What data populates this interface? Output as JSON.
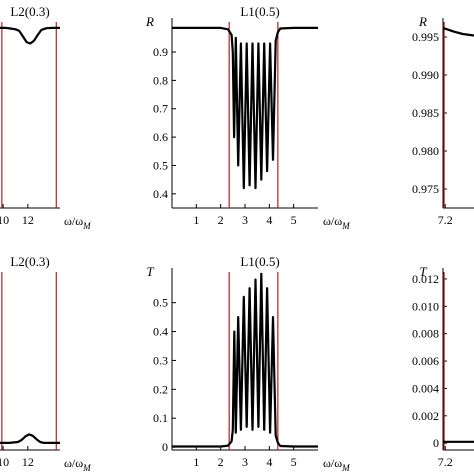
{
  "chart_data": [
    {
      "id": "top-left",
      "type": "line",
      "title": "L2(0.3)",
      "xlabel": "ω/ω_M",
      "ylabel": "",
      "xlim": [
        9.75,
        14.6
      ],
      "ylim": [
        0.35,
        1.02
      ],
      "xticks": [
        {
          "v": 10,
          "label": "10"
        },
        {
          "v": 12,
          "label": "12"
        }
      ],
      "yticks": [],
      "vlines": [
        9.9,
        14.3
      ],
      "series": [
        {
          "x": [
            9.75,
            10.2,
            10.6,
            11.0,
            11.3,
            11.6,
            11.9,
            12.2,
            12.5,
            12.8,
            13.1,
            13.5,
            14.0,
            14.6
          ],
          "y": [
            0.985,
            0.985,
            0.983,
            0.98,
            0.975,
            0.955,
            0.935,
            0.93,
            0.94,
            0.96,
            0.978,
            0.984,
            0.985,
            0.985
          ]
        }
      ]
    },
    {
      "id": "top-middle",
      "type": "line",
      "title": "L1(0.5)",
      "xlabel": "ω/ω_M",
      "ylabel": "R",
      "xlim": [
        0,
        6
      ],
      "ylim": [
        0.35,
        1.02
      ],
      "xticks": [
        {
          "v": 1,
          "label": "1"
        },
        {
          "v": 2,
          "label": "2"
        },
        {
          "v": 3,
          "label": "3"
        },
        {
          "v": 4,
          "label": "4"
        },
        {
          "v": 5,
          "label": "5"
        }
      ],
      "yticks": [
        {
          "v": 0.4,
          "label": "0.4"
        },
        {
          "v": 0.5,
          "label": "0.5"
        },
        {
          "v": 0.6,
          "label": "0.6"
        },
        {
          "v": 0.7,
          "label": "0.7"
        },
        {
          "v": 0.8,
          "label": "0.8"
        },
        {
          "v": 0.9,
          "label": "0.9"
        }
      ],
      "vlines": [
        2.35,
        4.35
      ],
      "series": [
        {
          "x": [
            0,
            1,
            2,
            2.3,
            2.45,
            2.5,
            2.55,
            2.62,
            2.72,
            2.83,
            2.95,
            3.07,
            3.19,
            3.31,
            3.43,
            3.55,
            3.67,
            3.79,
            3.91,
            4.03,
            4.15,
            4.26,
            4.35,
            4.45,
            5,
            6
          ],
          "y": [
            0.985,
            0.985,
            0.985,
            0.98,
            0.96,
            0.9,
            0.6,
            0.95,
            0.5,
            0.93,
            0.42,
            0.93,
            0.43,
            0.93,
            0.42,
            0.93,
            0.45,
            0.93,
            0.48,
            0.93,
            0.52,
            0.94,
            0.97,
            0.983,
            0.985,
            0.985
          ]
        }
      ]
    },
    {
      "id": "top-right",
      "type": "line",
      "title": "",
      "xlabel": "",
      "ylabel": "R",
      "xlim": [
        7.1,
        8.5
      ],
      "ylim": [
        0.9725,
        0.9975
      ],
      "xticks": [
        {
          "v": 7.2,
          "label": "7.2"
        }
      ],
      "yticks": [
        {
          "v": 0.975,
          "label": "0.975"
        },
        {
          "v": 0.98,
          "label": "0.980"
        },
        {
          "v": 0.985,
          "label": "0.985"
        },
        {
          "v": 0.99,
          "label": "0.990"
        },
        {
          "v": 0.995,
          "label": "0.995"
        }
      ],
      "vlines": [
        7.15
      ],
      "series": [
        {
          "x": [
            7.1,
            7.3,
            7.6,
            8.0,
            8.5
          ],
          "y": [
            0.9962,
            0.996,
            0.9957,
            0.9954,
            0.9952
          ]
        }
      ]
    },
    {
      "id": "bottom-left",
      "type": "line",
      "title": "L2(0.3)",
      "xlabel": "ω/ω_M",
      "ylabel": "",
      "xlim": [
        9.75,
        14.6
      ],
      "ylim": [
        -0.02,
        0.62
      ],
      "xticks": [
        {
          "v": 10,
          "label": "10"
        },
        {
          "v": 12,
          "label": "12"
        }
      ],
      "yticks": [],
      "vlines": [
        9.9,
        14.3
      ],
      "series": [
        {
          "x": [
            9.75,
            10.5,
            11.2,
            11.5,
            11.8,
            12.1,
            12.4,
            12.7,
            13.0,
            13.3,
            14.0,
            14.6
          ],
          "y": [
            0.005,
            0.005,
            0.008,
            0.015,
            0.028,
            0.035,
            0.03,
            0.018,
            0.008,
            0.005,
            0.005,
            0.005
          ]
        }
      ]
    },
    {
      "id": "bottom-middle",
      "type": "line",
      "title": "L1(0.5)",
      "xlabel": "ω/ω_M",
      "ylabel": "T",
      "xlim": [
        0,
        6
      ],
      "ylim": [
        -0.01,
        0.62
      ],
      "xticks": [
        {
          "v": 1,
          "label": "1"
        },
        {
          "v": 2,
          "label": "2"
        },
        {
          "v": 3,
          "label": "3"
        },
        {
          "v": 4,
          "label": "4"
        },
        {
          "v": 5,
          "label": "5"
        }
      ],
      "yticks": [
        {
          "v": 0,
          "label": "0"
        },
        {
          "v": 0.1,
          "label": "0.1"
        },
        {
          "v": 0.2,
          "label": "0.2"
        },
        {
          "v": 0.3,
          "label": "0.3"
        },
        {
          "v": 0.4,
          "label": "0.4"
        },
        {
          "v": 0.5,
          "label": "0.5"
        }
      ],
      "vlines": [
        2.35,
        4.35
      ],
      "series": [
        {
          "x": [
            0,
            1,
            2,
            2.3,
            2.45,
            2.5,
            2.56,
            2.62,
            2.72,
            2.83,
            2.95,
            3.07,
            3.19,
            3.31,
            3.43,
            3.55,
            3.67,
            3.79,
            3.91,
            4.03,
            4.15,
            4.26,
            4.35,
            4.45,
            5,
            6
          ],
          "y": [
            0.002,
            0.002,
            0.002,
            0.005,
            0.02,
            0.06,
            0.4,
            0.05,
            0.45,
            0.06,
            0.52,
            0.07,
            0.55,
            0.06,
            0.58,
            0.07,
            0.6,
            0.06,
            0.55,
            0.05,
            0.45,
            0.04,
            0.015,
            0.004,
            0.002,
            0.002
          ]
        }
      ]
    },
    {
      "id": "bottom-right",
      "type": "line",
      "title": "",
      "xlabel": "",
      "ylabel": "T",
      "xlim": [
        7.1,
        8.5
      ],
      "ylim": [
        -0.0005,
        0.0128
      ],
      "xticks": [
        {
          "v": 7.2,
          "label": "7.2"
        }
      ],
      "yticks": [
        {
          "v": 0,
          "label": "0"
        },
        {
          "v": 0.002,
          "label": "0.002"
        },
        {
          "v": 0.004,
          "label": "0.004"
        },
        {
          "v": 0.006,
          "label": "0.006"
        },
        {
          "v": 0.008,
          "label": "0.008"
        },
        {
          "v": 0.01,
          "label": "0.010"
        },
        {
          "v": 0.012,
          "label": "0.012"
        }
      ],
      "vlines": [
        7.15
      ],
      "series": [
        {
          "x": [
            7.1,
            7.3,
            7.6,
            8.0,
            8.5
          ],
          "y": [
            0.0001,
            0.0001,
            0.0001,
            0.0001,
            0.0001
          ]
        }
      ]
    }
  ],
  "colors": {
    "curve": "#000000",
    "band_edge": "#b22222",
    "axis": "#000000"
  }
}
